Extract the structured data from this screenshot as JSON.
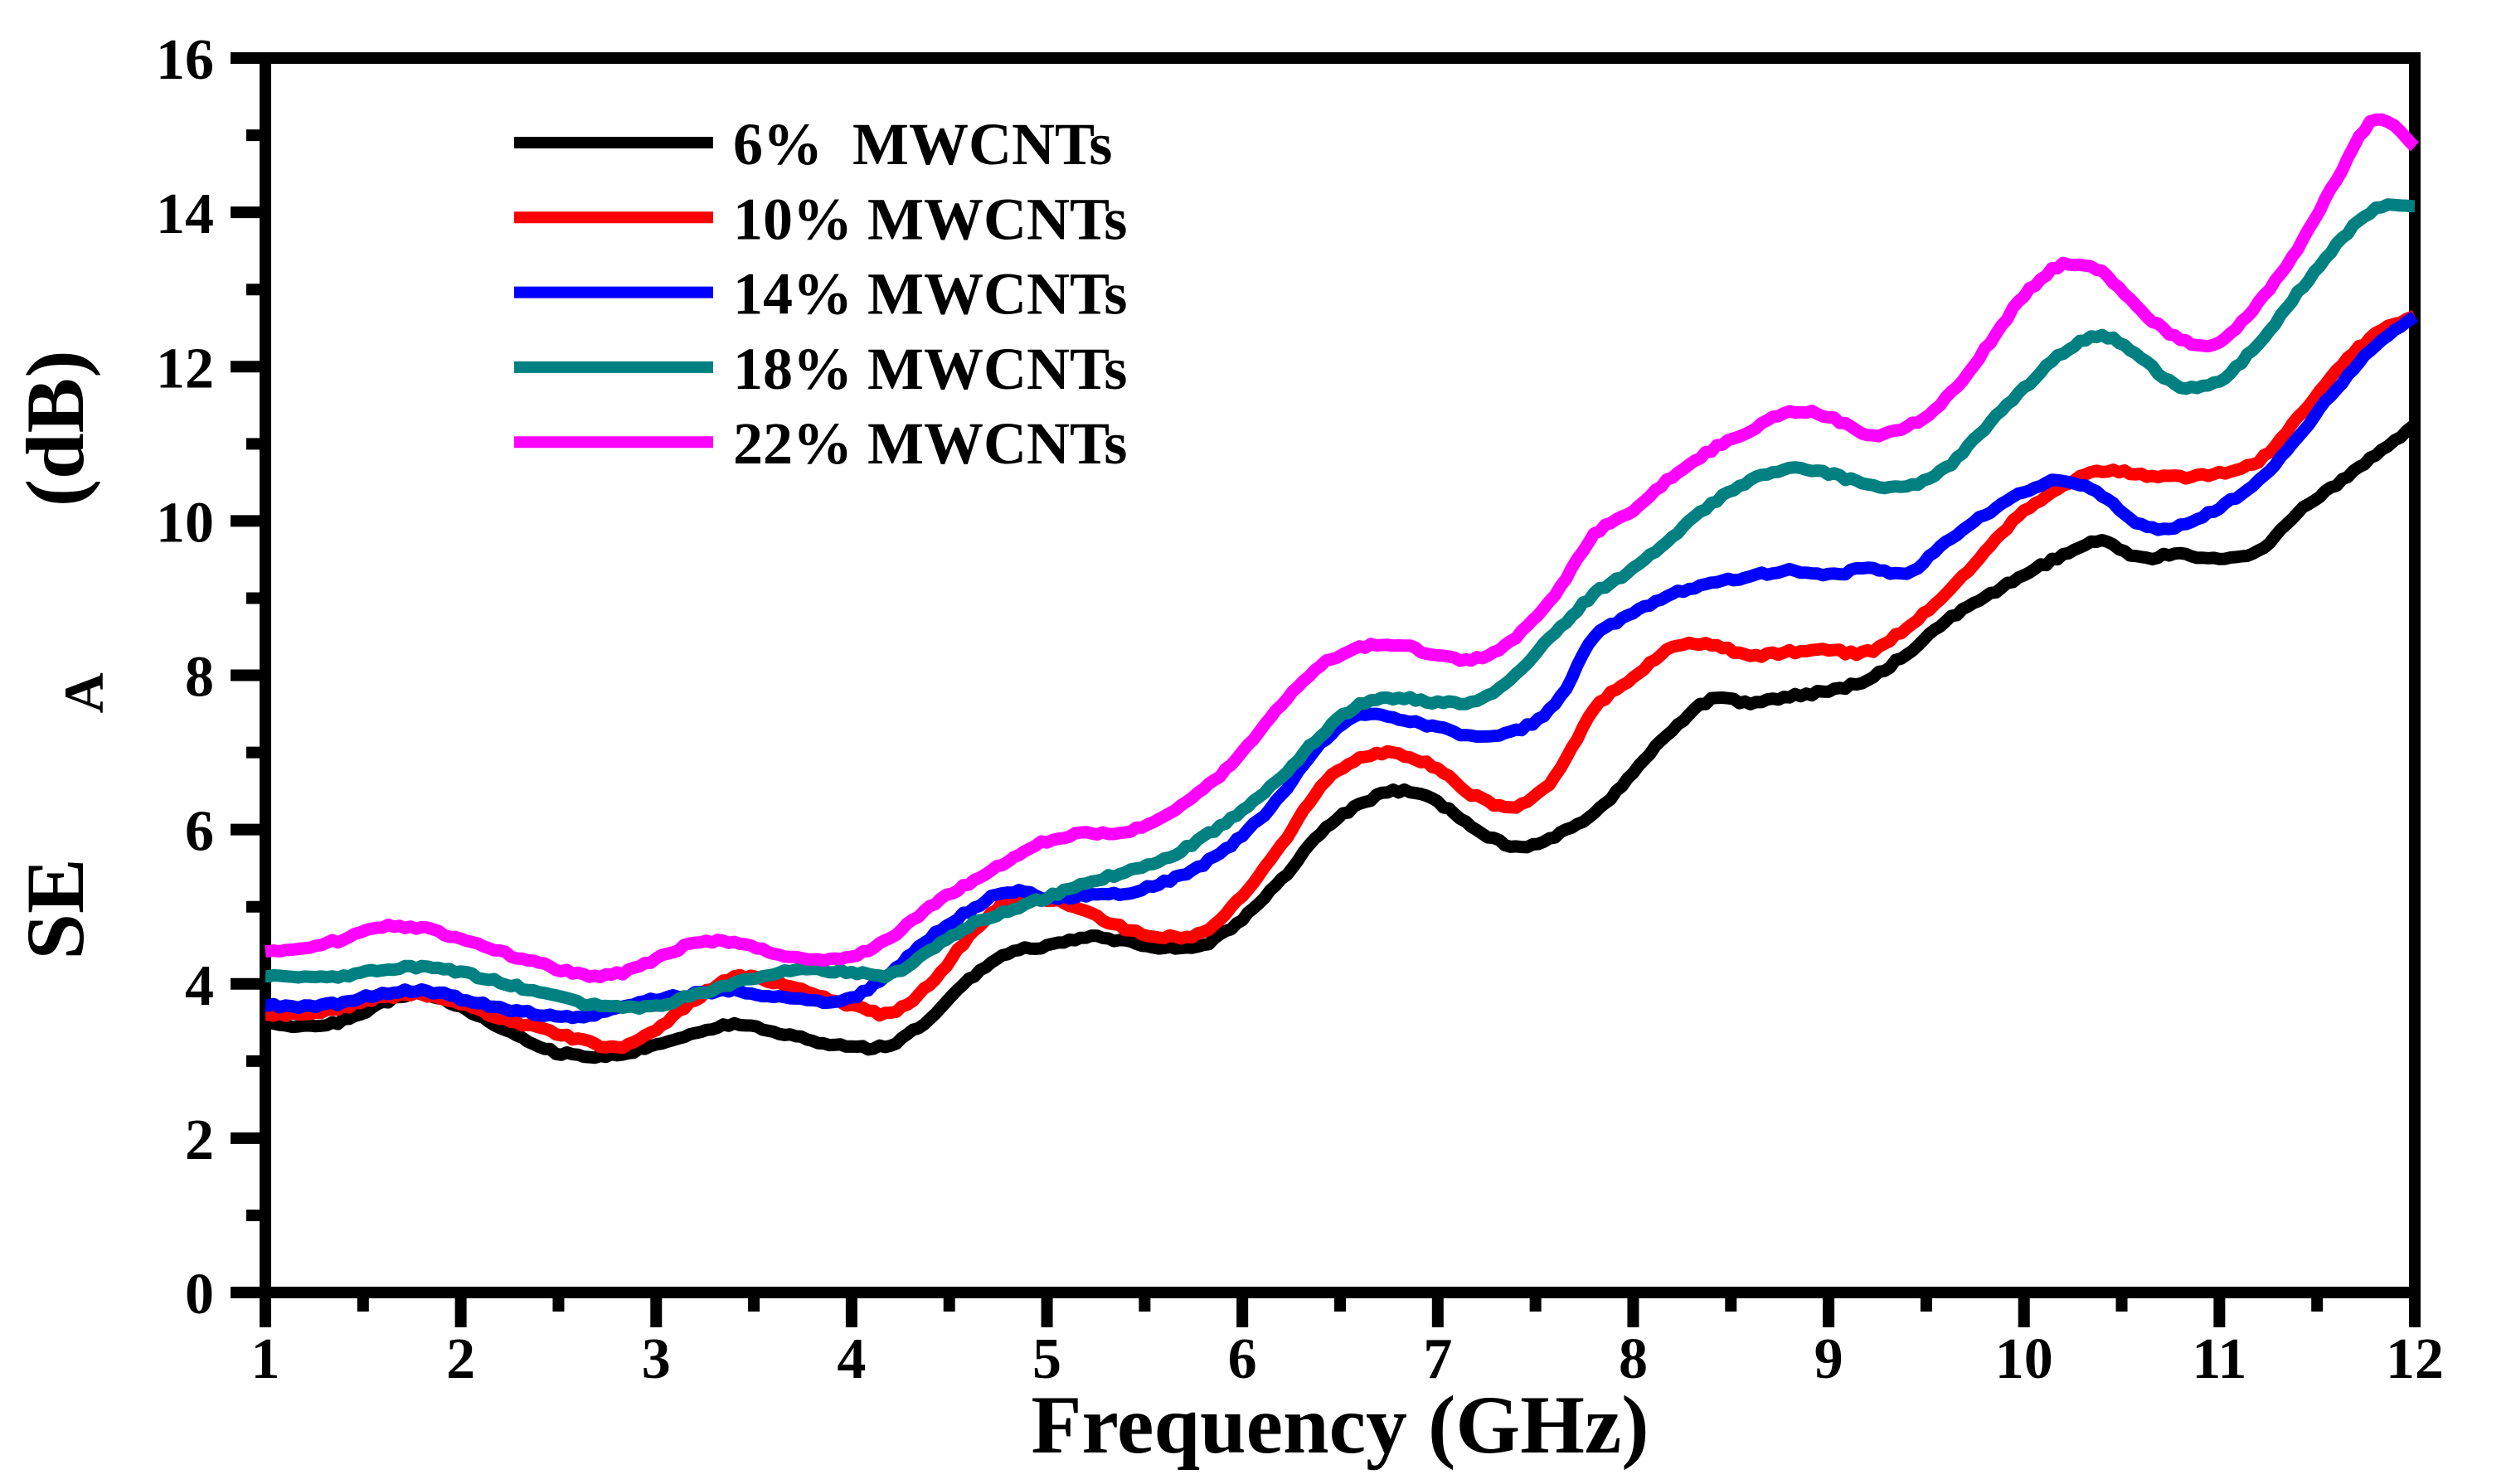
{
  "figure": {
    "background": "#ffffff",
    "xlabel": "Frequency (GHz)",
    "ylabel": {
      "main": "SE",
      "sub": "A",
      "rest": " (dB)"
    }
  },
  "chart_data": {
    "type": "line",
    "title": "",
    "xlabel": "Frequency (GHz)",
    "ylabel": "SE_A (dB)",
    "xlim": [
      1,
      12
    ],
    "ylim": [
      0,
      16
    ],
    "x_major_ticks": [
      1,
      2,
      3,
      4,
      5,
      6,
      7,
      8,
      9,
      10,
      11,
      12
    ],
    "x_minor_step": 0.5,
    "y_major_ticks": [
      0,
      2,
      4,
      6,
      8,
      10,
      12,
      14,
      16
    ],
    "y_minor_step": 1,
    "grid": false,
    "legend_position": "upper-left-inside",
    "x": [
      1.0,
      1.2,
      1.4,
      1.6,
      1.8,
      2.0,
      2.2,
      2.4,
      2.6,
      2.8,
      3.0,
      3.2,
      3.4,
      3.6,
      3.8,
      4.0,
      4.2,
      4.4,
      4.6,
      4.8,
      5.0,
      5.2,
      5.4,
      5.6,
      5.8,
      6.0,
      6.2,
      6.4,
      6.6,
      6.8,
      7.0,
      7.2,
      7.4,
      7.6,
      7.8,
      8.0,
      8.2,
      8.4,
      8.6,
      8.8,
      9.0,
      9.2,
      9.4,
      9.6,
      9.8,
      10.0,
      10.2,
      10.4,
      10.6,
      10.8,
      11.0,
      11.2,
      11.4,
      11.6,
      11.8,
      12.0
    ],
    "series": [
      {
        "name": "6% MWCNTs",
        "label": "6%  MWCNTs",
        "color": "#000000",
        "values": [
          3.5,
          3.46,
          3.52,
          3.75,
          3.87,
          3.7,
          3.45,
          3.18,
          3.07,
          3.08,
          3.2,
          3.37,
          3.47,
          3.39,
          3.26,
          3.18,
          3.22,
          3.55,
          4.05,
          4.4,
          4.48,
          4.6,
          4.55,
          4.47,
          4.5,
          4.85,
          5.35,
          5.95,
          6.32,
          6.5,
          6.35,
          6.0,
          5.78,
          5.92,
          6.2,
          6.75,
          7.3,
          7.68,
          7.65,
          7.73,
          7.8,
          7.95,
          8.28,
          8.7,
          9.0,
          9.3,
          9.55,
          9.73,
          9.52,
          9.58,
          9.5,
          9.62,
          10.1,
          10.48,
          10.85,
          11.25
        ]
      },
      {
        "name": "10% MWCNTs",
        "label": "10% MWCNTs",
        "color": "#ff0000",
        "values": [
          3.6,
          3.62,
          3.7,
          3.82,
          3.86,
          3.74,
          3.55,
          3.42,
          3.28,
          3.18,
          3.42,
          3.8,
          4.08,
          4.02,
          3.87,
          3.72,
          3.62,
          4.0,
          4.6,
          5.08,
          5.1,
          4.93,
          4.72,
          4.61,
          4.68,
          5.15,
          5.8,
          6.55,
          6.92,
          6.98,
          6.78,
          6.42,
          6.3,
          6.68,
          7.55,
          7.98,
          8.35,
          8.4,
          8.26,
          8.3,
          8.32,
          8.3,
          8.62,
          9.05,
          9.6,
          10.12,
          10.45,
          10.65,
          10.6,
          10.57,
          10.62,
          10.78,
          11.32,
          11.95,
          12.42,
          12.66
        ]
      },
      {
        "name": "14% MWCNTs",
        "label": "14% MWCNTs",
        "color": "#0000ff",
        "values": [
          3.72,
          3.7,
          3.76,
          3.88,
          3.92,
          3.81,
          3.68,
          3.61,
          3.56,
          3.68,
          3.8,
          3.87,
          3.91,
          3.84,
          3.78,
          3.82,
          4.15,
          4.6,
          4.95,
          5.2,
          5.12,
          5.15,
          5.18,
          5.32,
          5.55,
          5.92,
          6.45,
          7.1,
          7.48,
          7.44,
          7.32,
          7.2,
          7.28,
          7.62,
          8.48,
          8.8,
          9.05,
          9.2,
          9.28,
          9.36,
          9.3,
          9.38,
          9.32,
          9.72,
          10.08,
          10.38,
          10.52,
          10.32,
          9.95,
          9.93,
          10.18,
          10.52,
          11.08,
          11.72,
          12.28,
          12.65
        ]
      },
      {
        "name": "18% MWCNTs",
        "label": "18% MWCNTs",
        "color": "#008080",
        "values": [
          4.1,
          4.09,
          4.11,
          4.18,
          4.22,
          4.15,
          4.02,
          3.9,
          3.76,
          3.7,
          3.72,
          3.86,
          4.0,
          4.13,
          4.18,
          4.15,
          4.12,
          4.42,
          4.75,
          4.95,
          5.12,
          5.3,
          5.45,
          5.62,
          5.9,
          6.25,
          6.68,
          7.22,
          7.62,
          7.7,
          7.65,
          7.68,
          8.02,
          8.55,
          9.05,
          9.38,
          9.8,
          10.22,
          10.52,
          10.68,
          10.62,
          10.47,
          10.45,
          10.68,
          11.2,
          11.72,
          12.18,
          12.4,
          12.1,
          11.74,
          11.82,
          12.3,
          12.95,
          13.58,
          14.05,
          14.08
        ]
      },
      {
        "name": "22% MWCNTs",
        "label": "22% MWCNTs",
        "color": "#ff00ff",
        "values": [
          4.42,
          4.47,
          4.58,
          4.74,
          4.72,
          4.59,
          4.42,
          4.27,
          4.13,
          4.13,
          4.32,
          4.53,
          4.53,
          4.4,
          4.3,
          4.35,
          4.6,
          5.0,
          5.3,
          5.6,
          5.85,
          5.95,
          5.96,
          6.18,
          6.52,
          7.0,
          7.62,
          8.12,
          8.36,
          8.4,
          8.25,
          8.22,
          8.5,
          9.05,
          9.82,
          10.15,
          10.58,
          10.92,
          11.18,
          11.42,
          11.35,
          11.12,
          11.22,
          11.58,
          12.22,
          12.92,
          13.32,
          13.22,
          12.72,
          12.35,
          12.32,
          12.82,
          13.52,
          14.42,
          15.22,
          14.85
        ]
      }
    ]
  }
}
